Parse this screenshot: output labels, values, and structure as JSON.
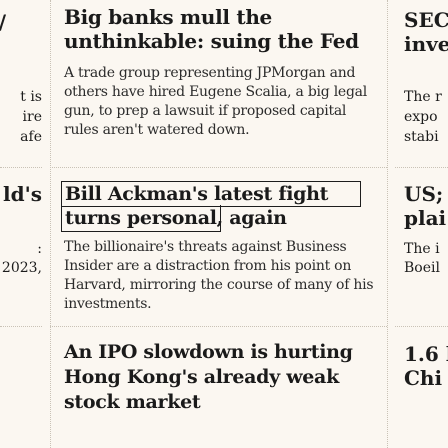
{
  "articles": [
    {
      "headline": "Big banks mull the unthinkable: suing the Fed",
      "dek": "A trade group representing JPMorgan and others have hired Eugene Scalia, a big legal gun, to prep a lawsuit if proposed capital rules aren't watered down."
    },
    {
      "headline": "Bill Ackman's latest fight turns personal, again",
      "dek": "The billionaire's threats against Business Insider are a distraction from his point on Harvard, mirroring the course of many of his investments."
    },
    {
      "headline": "An IPO slowdown is hurting Hong Kong's already weak stock market",
      "dek": ""
    }
  ],
  "left_fragments": {
    "row1_head": "/",
    "row1_dek": [
      "t is",
      "ire",
      "afe"
    ],
    "row2_head": "ld's",
    "row2_dek": [
      ":",
      "2023,"
    ]
  },
  "right_fragments": {
    "row1_head": [
      "SEC",
      "inve"
    ],
    "row1_dek": [
      "The r",
      "expo",
      "stabi"
    ],
    "row2_head": [
      "US;",
      "plai"
    ],
    "row2_dek": [
      "The i",
      "Boeil"
    ],
    "row3_head": [
      "1.6 l",
      "Chi"
    ]
  }
}
